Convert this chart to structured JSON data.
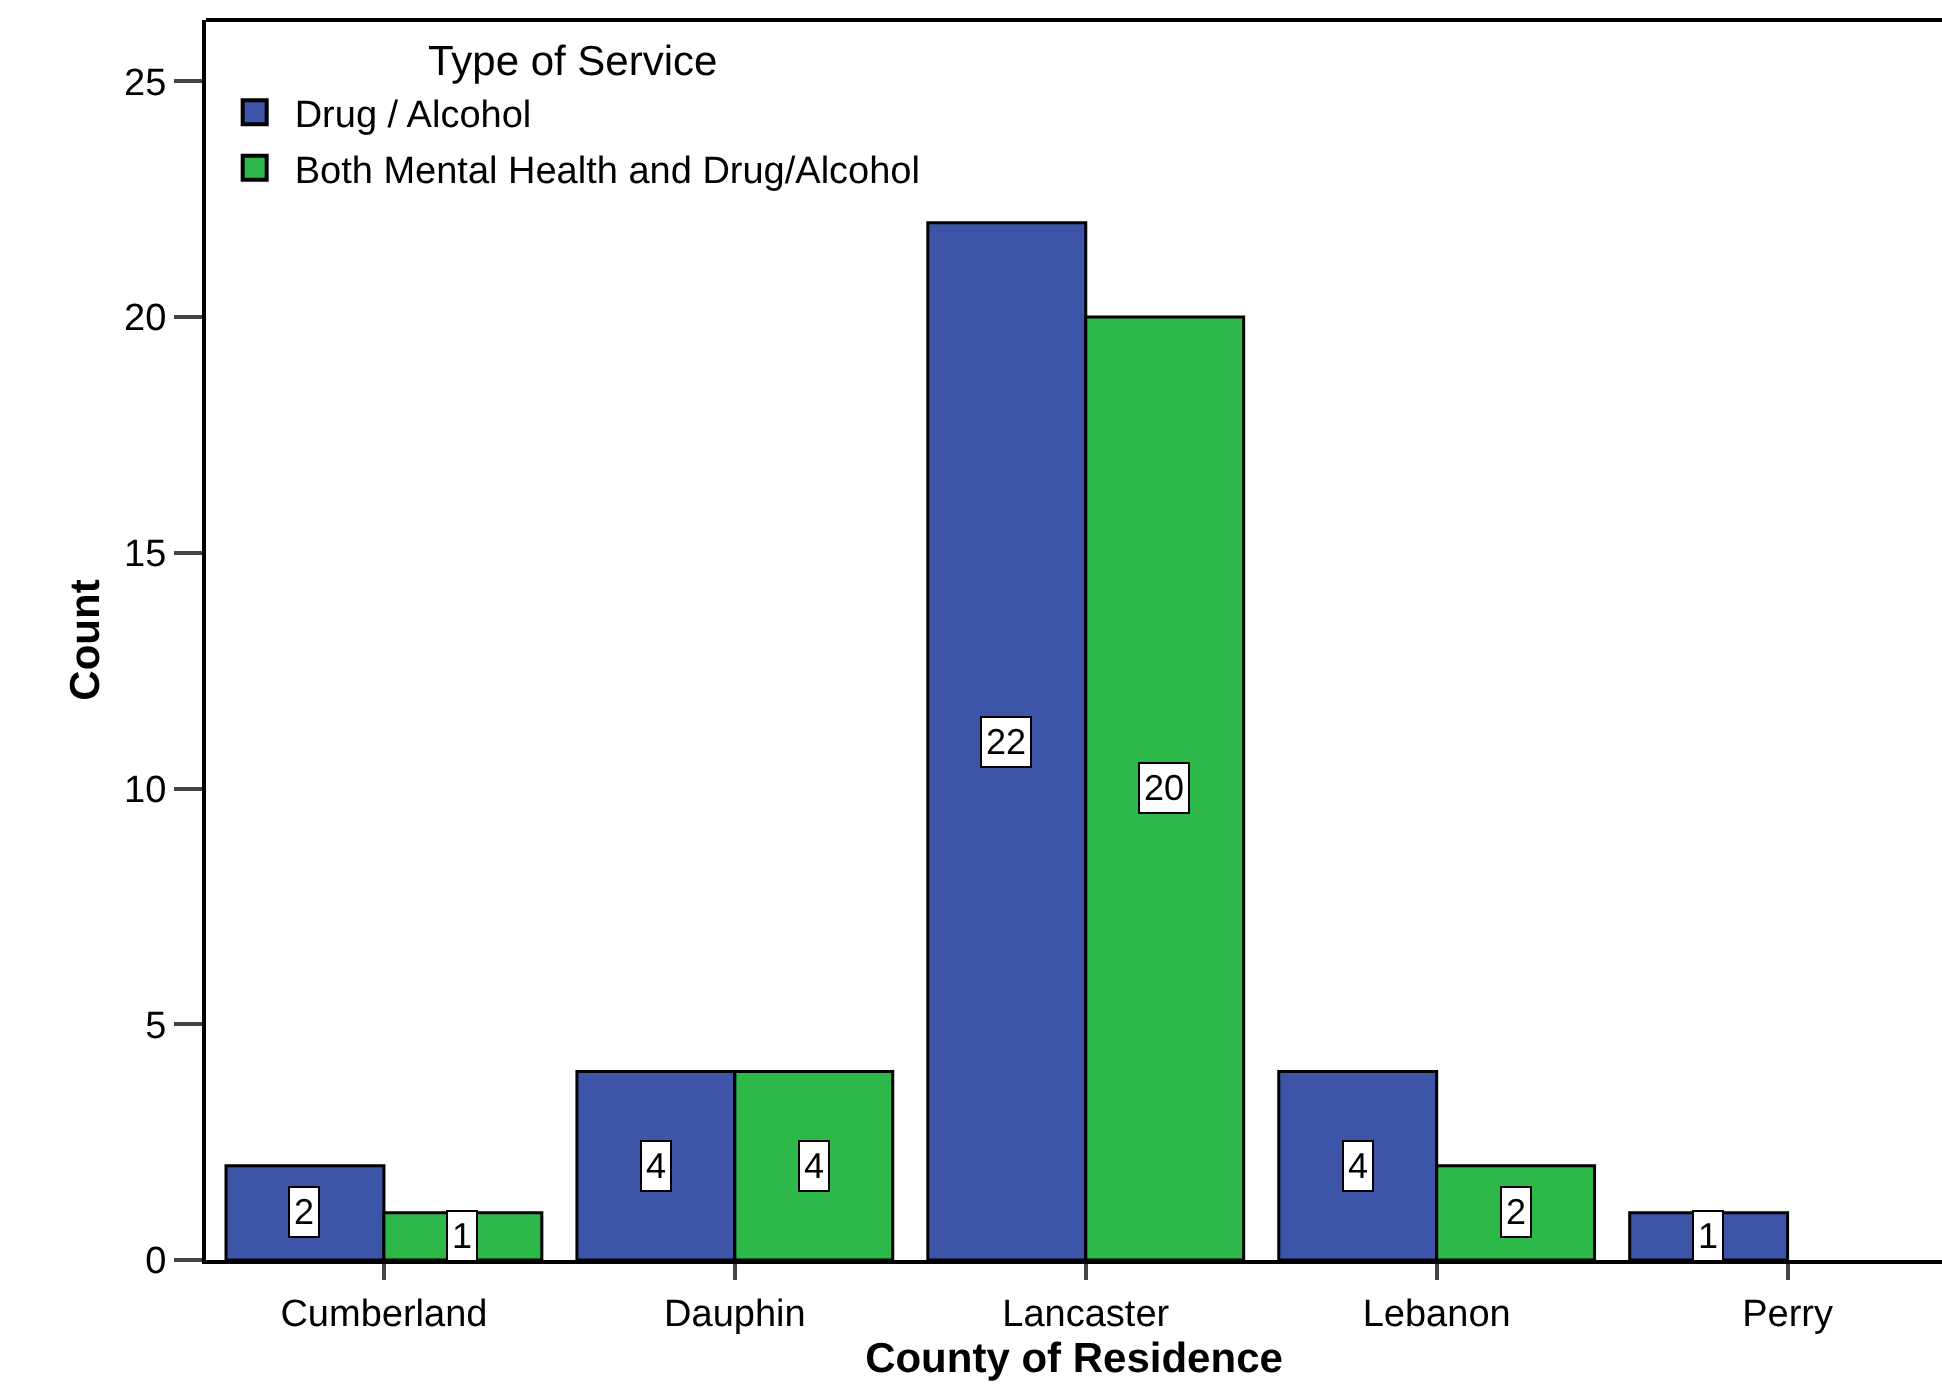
{
  "chart_data": {
    "type": "bar",
    "xlabel": "County of Residence",
    "ylabel": "Count",
    "legend_title": "Type of Service",
    "categories": [
      "Cumberland",
      "Dauphin",
      "Lancaster",
      "Lebanon",
      "Perry"
    ],
    "series": [
      {
        "name": "Drug / Alcohol",
        "color": "#3d55a8",
        "values": [
          2,
          4,
          22,
          4,
          1
        ]
      },
      {
        "name": "Both Mental Health and Drug/Alcohol",
        "color": "#2db84a",
        "values": [
          1,
          4,
          20,
          2,
          null
        ]
      }
    ],
    "ylim": [
      0,
      26.3
    ],
    "yticks": [
      0,
      5,
      10,
      15,
      20,
      25
    ],
    "legend": "top left",
    "data_labels": true
  }
}
